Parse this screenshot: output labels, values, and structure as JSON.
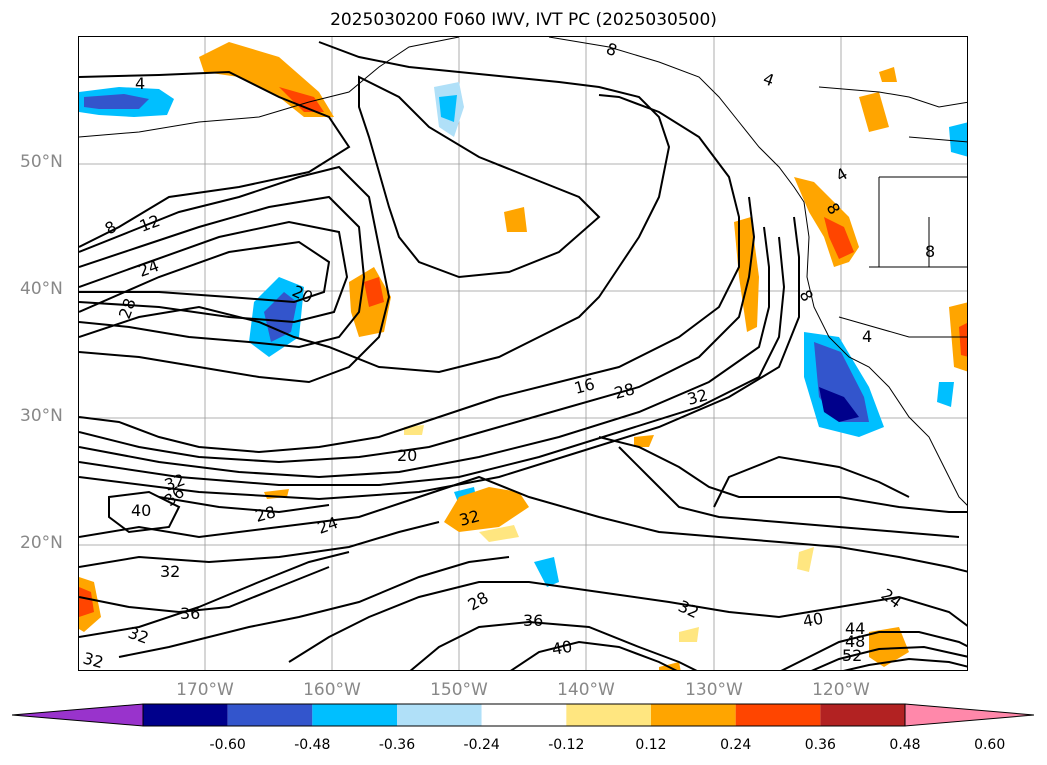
{
  "title": "2025030200 F060 IWV, IVT PC (2025030500)",
  "lat_labels": [
    "50°N",
    "40°N",
    "30°N",
    "20°N"
  ],
  "lon_labels": [
    "170°W",
    "160°W",
    "150°W",
    "140°W",
    "130°W",
    "120°W"
  ],
  "colorbar": {
    "ticks": [
      "-0.60",
      "-0.48",
      "-0.36",
      "-0.24",
      "-0.12",
      "0.12",
      "0.24",
      "0.36",
      "0.48",
      "0.60"
    ],
    "colors": [
      "#9933cc",
      "#00008b",
      "#3355cc",
      "#00bfff",
      "#b0e0f8",
      "#ffffff",
      "#ffe680",
      "#ffa500",
      "#ff4500",
      "#b22222",
      "#ff88aa"
    ]
  },
  "contour_labels": [
    "4",
    "8",
    "12",
    "24",
    "28",
    "20",
    "16",
    "28",
    "32",
    "20",
    "32",
    "36",
    "40",
    "28",
    "24",
    "32",
    "32",
    "36",
    "32",
    "32",
    "28",
    "36",
    "40",
    "32",
    "40",
    "44",
    "48",
    "52",
    "24",
    "8",
    "4",
    "8",
    "4",
    "8",
    "4",
    "8"
  ]
}
